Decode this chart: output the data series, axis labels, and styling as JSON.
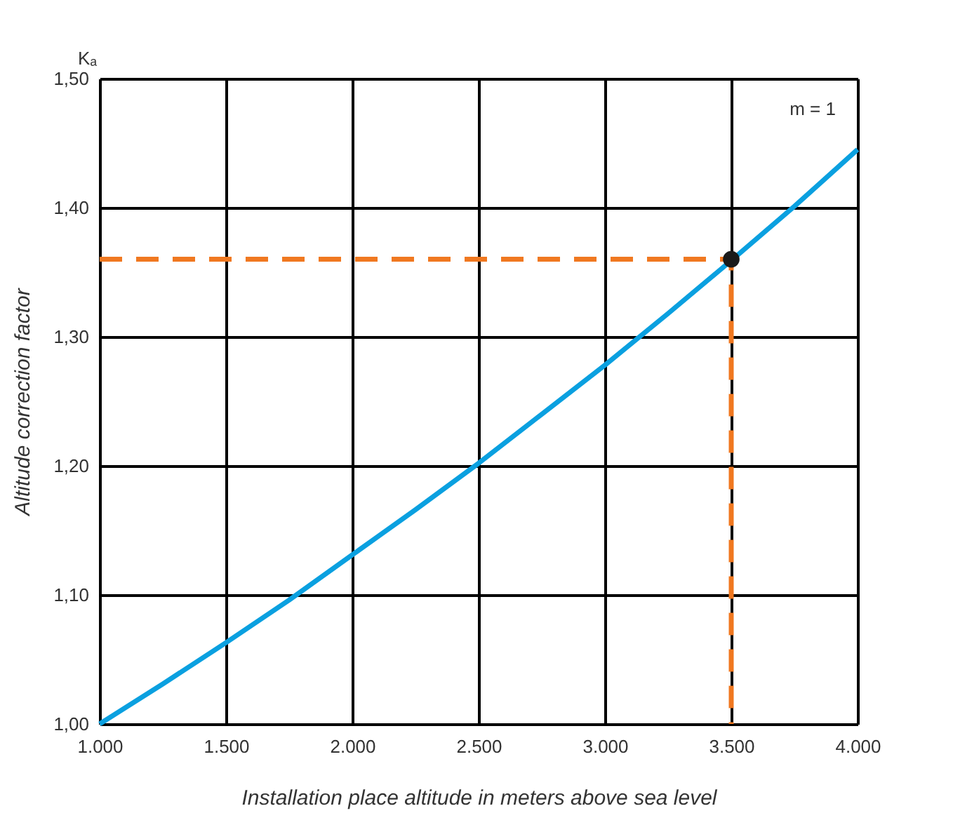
{
  "chart_data": {
    "type": "line",
    "xlabel": "Installation place altitude in meters above sea level",
    "ylabel": "Altitude correction factor",
    "annotations": [
      "Kₐ",
      "m = 1"
    ],
    "xlim": [
      1000,
      4000
    ],
    "xticks": [
      {
        "value": 1000,
        "label": "1.000"
      },
      {
        "value": 1500,
        "label": "1.500"
      },
      {
        "value": 2000,
        "label": "2.000"
      },
      {
        "value": 2500,
        "label": "2.500"
      },
      {
        "value": 3000,
        "label": "3.000"
      },
      {
        "value": 3500,
        "label": "3.500"
      },
      {
        "value": 4000,
        "label": "4.000"
      }
    ],
    "ylim": [
      1.0,
      1.5
    ],
    "yticks": [
      {
        "value": 1.0,
        "label": "1,00"
      },
      {
        "value": 1.1,
        "label": "1,10"
      },
      {
        "value": 1.2,
        "label": "1,20"
      },
      {
        "value": 1.3,
        "label": "1,30"
      },
      {
        "value": 1.4,
        "label": "1,40"
      },
      {
        "value": 1.5,
        "label": "1,50"
      }
    ],
    "grid": true,
    "legend": false,
    "series": [
      {
        "type": "line",
        "color": "#0aa0e0",
        "line_style": "solid",
        "marker": "none",
        "x": [
          1000,
          1250,
          1500,
          1750,
          2000,
          2250,
          2500,
          2750,
          3000,
          3250,
          3500,
          3750,
          4000
        ],
        "values": [
          1.0,
          1.031,
          1.063,
          1.096,
          1.131,
          1.166,
          1.202,
          1.24,
          1.278,
          1.318,
          1.359,
          1.401,
          1.445
        ]
      },
      {
        "type": "line",
        "color": "#f07820",
        "line_style": "dashed",
        "marker": "none",
        "x": [
          1000,
          3500,
          3500
        ],
        "values": [
          1.36,
          1.36,
          1.0
        ]
      },
      {
        "type": "scatter",
        "color": "#1a1a1a",
        "marker": "circle",
        "x": [
          3500
        ],
        "values": [
          1.36
        ]
      }
    ]
  }
}
